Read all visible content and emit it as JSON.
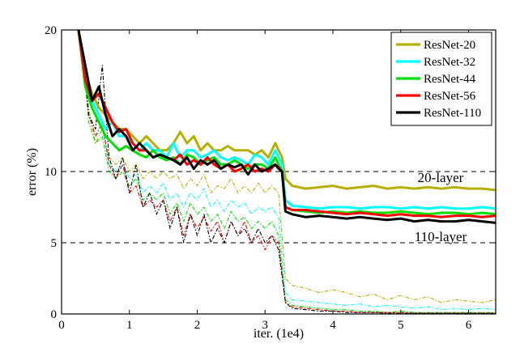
{
  "chart_data": {
    "type": "line",
    "xlabel": "iter. (1e4)",
    "ylabel": "error (%)",
    "xlim": [
      0,
      6.4
    ],
    "ylim": [
      0,
      20
    ],
    "x_ticks": [
      "0",
      "1",
      "2",
      "3",
      "4",
      "5",
      "6"
    ],
    "y_ticks": [
      "0",
      "5",
      "10",
      "20"
    ],
    "grid": "horizontal dashed at 5, 10, 20",
    "legend_position": "top-right",
    "annotations": [
      "20-layer",
      "110-layer"
    ],
    "series": [
      {
        "name": "ResNet-20",
        "color": "#b5b000",
        "style": "solid",
        "x": [
          0.25,
          0.35,
          0.45,
          0.55,
          0.65,
          0.75,
          0.85,
          0.95,
          1.05,
          1.15,
          1.25,
          1.35,
          1.45,
          1.55,
          1.65,
          1.75,
          1.85,
          1.95,
          2.05,
          2.15,
          2.25,
          2.35,
          2.45,
          2.55,
          2.65,
          2.75,
          2.85,
          2.95,
          3.05,
          3.15,
          3.2,
          3.25,
          3.3,
          3.4,
          3.6,
          3.8,
          4.0,
          4.2,
          4.4,
          4.6,
          4.8,
          5.0,
          5.2,
          5.4,
          5.6,
          5.8,
          6.0,
          6.2,
          6.4
        ],
        "values": [
          20,
          17.0,
          15.5,
          14.5,
          14.0,
          13.5,
          13.0,
          13.0,
          12.5,
          12.0,
          12.5,
          12.0,
          11.5,
          11.5,
          12.0,
          12.8,
          12.0,
          12.5,
          11.5,
          12.0,
          11.5,
          11.5,
          11.8,
          11.5,
          11.5,
          11.5,
          11.2,
          11.5,
          11.0,
          12.0,
          11.5,
          11.0,
          9.5,
          9.0,
          8.8,
          8.9,
          9.0,
          8.8,
          8.9,
          9.0,
          8.8,
          8.9,
          8.8,
          8.9,
          8.8,
          8.9,
          8.8,
          8.8,
          8.7
        ]
      },
      {
        "name": "ResNet-32",
        "color": "#00ffff",
        "style": "solid",
        "x": [
          0.25,
          0.35,
          0.45,
          0.55,
          0.65,
          0.75,
          0.85,
          0.95,
          1.05,
          1.15,
          1.25,
          1.35,
          1.45,
          1.55,
          1.65,
          1.75,
          1.85,
          1.95,
          2.05,
          2.15,
          2.25,
          2.35,
          2.45,
          2.55,
          2.65,
          2.75,
          2.85,
          2.95,
          3.05,
          3.15,
          3.2,
          3.25,
          3.3,
          3.4,
          3.6,
          3.8,
          4.0,
          4.2,
          4.4,
          4.6,
          4.8,
          5.0,
          5.2,
          5.4,
          5.6,
          5.8,
          6.0,
          6.2,
          6.4
        ],
        "values": [
          20,
          16.5,
          15.0,
          14.0,
          13.0,
          13.5,
          12.5,
          12.5,
          12.0,
          11.5,
          12.0,
          11.5,
          11.5,
          11.0,
          12.0,
          11.0,
          11.5,
          11.5,
          11.0,
          11.2,
          11.5,
          11.0,
          10.8,
          11.0,
          10.8,
          10.5,
          11.2,
          11.0,
          10.5,
          11.5,
          11.0,
          10.5,
          8.0,
          7.6,
          7.5,
          7.4,
          7.5,
          7.5,
          7.4,
          7.5,
          7.5,
          7.4,
          7.5,
          7.4,
          7.5,
          7.4,
          7.4,
          7.5,
          7.4
        ]
      },
      {
        "name": "ResNet-44",
        "color": "#00e000",
        "style": "solid",
        "x": [
          0.25,
          0.35,
          0.45,
          0.55,
          0.65,
          0.75,
          0.85,
          0.95,
          1.05,
          1.15,
          1.25,
          1.35,
          1.45,
          1.55,
          1.65,
          1.75,
          1.85,
          1.95,
          2.05,
          2.15,
          2.25,
          2.35,
          2.45,
          2.55,
          2.65,
          2.75,
          2.85,
          2.95,
          3.05,
          3.15,
          3.2,
          3.25,
          3.3,
          3.4,
          3.6,
          3.8,
          4.0,
          4.2,
          4.4,
          4.6,
          4.8,
          5.0,
          5.2,
          5.4,
          5.6,
          5.8,
          6.0,
          6.2,
          6.4
        ],
        "values": [
          20,
          16.0,
          14.5,
          13.5,
          12.5,
          12.0,
          11.5,
          11.8,
          11.5,
          11.2,
          11.0,
          11.5,
          11.0,
          10.8,
          11.0,
          10.5,
          11.2,
          11.0,
          10.5,
          10.8,
          11.0,
          10.5,
          10.5,
          10.8,
          10.5,
          10.2,
          10.5,
          10.5,
          10.2,
          11.0,
          10.5,
          10.0,
          7.5,
          7.3,
          7.2,
          7.1,
          7.2,
          7.1,
          7.2,
          7.1,
          7.1,
          7.2,
          7.1,
          7.0,
          7.1,
          7.1,
          7.0,
          7.1,
          7.0
        ]
      },
      {
        "name": "ResNet-56",
        "color": "#ff0000",
        "style": "solid",
        "x": [
          0.25,
          0.35,
          0.45,
          0.55,
          0.65,
          0.75,
          0.85,
          0.95,
          1.05,
          1.15,
          1.25,
          1.35,
          1.45,
          1.55,
          1.65,
          1.75,
          1.85,
          1.95,
          2.05,
          2.15,
          2.25,
          2.35,
          2.45,
          2.55,
          2.65,
          2.75,
          2.85,
          2.95,
          3.05,
          3.15,
          3.2,
          3.25,
          3.3,
          3.4,
          3.6,
          3.8,
          4.0,
          4.2,
          4.4,
          4.6,
          4.8,
          5.0,
          5.2,
          5.4,
          5.6,
          5.8,
          6.0,
          6.2,
          6.4
        ],
        "values": [
          20,
          16.5,
          15.0,
          15.5,
          14.5,
          13.5,
          12.8,
          13.0,
          12.0,
          11.5,
          11.5,
          11.0,
          11.2,
          11.0,
          10.8,
          11.2,
          10.5,
          10.8,
          10.5,
          11.0,
          10.5,
          10.2,
          10.5,
          10.0,
          10.2,
          10.5,
          10.0,
          10.2,
          10.0,
          10.5,
          10.3,
          10.0,
          7.5,
          7.3,
          7.3,
          7.2,
          7.1,
          7.0,
          7.1,
          7.0,
          6.9,
          7.0,
          6.9,
          6.9,
          6.8,
          6.9,
          6.9,
          6.8,
          6.9
        ]
      },
      {
        "name": "ResNet-110",
        "color": "#000000",
        "style": "solid",
        "x": [
          0.25,
          0.35,
          0.45,
          0.55,
          0.65,
          0.75,
          0.85,
          0.95,
          1.05,
          1.15,
          1.25,
          1.35,
          1.45,
          1.55,
          1.65,
          1.75,
          1.85,
          1.95,
          2.05,
          2.15,
          2.25,
          2.35,
          2.45,
          2.55,
          2.65,
          2.75,
          2.85,
          2.95,
          3.05,
          3.15,
          3.2,
          3.25,
          3.3,
          3.4,
          3.6,
          3.8,
          4.0,
          4.2,
          4.4,
          4.6,
          4.8,
          5.0,
          5.2,
          5.4,
          5.6,
          5.8,
          6.0,
          6.2,
          6.4
        ],
        "values": [
          20,
          17.5,
          15.0,
          16.0,
          14.0,
          12.5,
          13.0,
          12.5,
          11.5,
          12.0,
          11.5,
          11.0,
          11.2,
          11.0,
          10.8,
          10.5,
          11.0,
          10.2,
          10.8,
          10.5,
          10.8,
          10.2,
          10.5,
          10.3,
          10.5,
          9.8,
          10.5,
          10.0,
          10.2,
          10.5,
          10.2,
          10.0,
          7.2,
          7.0,
          6.8,
          6.9,
          6.8,
          6.7,
          6.8,
          6.7,
          6.6,
          6.7,
          6.5,
          6.6,
          6.5,
          6.5,
          6.6,
          6.5,
          6.4
        ]
      },
      {
        "color": "#b5b000",
        "style": "dashdot",
        "x": [
          0.3,
          0.4,
          0.5,
          0.6,
          0.7,
          0.8,
          0.9,
          1.0,
          1.1,
          1.2,
          1.3,
          1.4,
          1.5,
          1.6,
          1.7,
          1.8,
          1.9,
          2.0,
          2.1,
          2.2,
          2.3,
          2.4,
          2.5,
          2.6,
          2.7,
          2.8,
          2.9,
          3.0,
          3.1,
          3.2,
          3.3,
          3.4,
          3.6,
          3.8,
          4.0,
          4.2,
          4.4,
          4.6,
          4.8,
          5.0,
          5.2,
          5.4,
          5.6,
          5.8,
          6.0,
          6.2,
          6.4
        ],
        "values": [
          19,
          14.5,
          12.0,
          13.0,
          11.0,
          10.5,
          11.0,
          10.0,
          10.5,
          9.5,
          10.0,
          9.5,
          10.0,
          9.5,
          9.8,
          8.8,
          9.5,
          9.0,
          9.8,
          8.5,
          9.0,
          8.8,
          9.5,
          8.5,
          9.0,
          8.5,
          9.2,
          8.5,
          9.0,
          8.5,
          2.5,
          2.0,
          1.8,
          1.5,
          1.7,
          1.5,
          1.2,
          1.4,
          1.0,
          1.3,
          1.0,
          1.2,
          0.8,
          1.0,
          0.9,
          0.8,
          1.0
        ]
      },
      {
        "color": "#00ffff",
        "style": "dashdot",
        "x": [
          0.3,
          0.4,
          0.5,
          0.6,
          0.7,
          0.8,
          0.9,
          1.0,
          1.1,
          1.2,
          1.3,
          1.4,
          1.5,
          1.6,
          1.7,
          1.8,
          1.9,
          2.0,
          2.1,
          2.2,
          2.3,
          2.4,
          2.5,
          2.6,
          2.7,
          2.8,
          2.9,
          3.0,
          3.1,
          3.2,
          3.3,
          3.4,
          3.6,
          3.8,
          4.0,
          4.2,
          4.4,
          4.6,
          4.8,
          5.0,
          5.2,
          5.4,
          5.6,
          5.8,
          6.0,
          6.2,
          6.4
        ],
        "values": [
          19,
          14.0,
          12.5,
          13.0,
          10.5,
          10.0,
          10.5,
          9.5,
          9.8,
          8.5,
          9.0,
          8.5,
          9.2,
          8.0,
          8.5,
          7.5,
          8.5,
          8.0,
          8.8,
          7.5,
          8.0,
          7.2,
          8.0,
          7.5,
          7.8,
          7.0,
          7.5,
          7.2,
          7.5,
          6.8,
          1.5,
          1.0,
          0.9,
          0.8,
          0.7,
          0.6,
          0.7,
          0.5,
          0.6,
          0.5,
          0.4,
          0.5,
          0.3,
          0.4,
          0.3,
          0.4,
          0.3
        ]
      },
      {
        "color": "#00e000",
        "style": "dashdot",
        "x": [
          0.3,
          0.4,
          0.5,
          0.6,
          0.7,
          0.8,
          0.9,
          1.0,
          1.1,
          1.2,
          1.3,
          1.4,
          1.5,
          1.6,
          1.7,
          1.8,
          1.9,
          2.0,
          2.1,
          2.2,
          2.3,
          2.4,
          2.5,
          2.6,
          2.7,
          2.8,
          2.9,
          3.0,
          3.1,
          3.2,
          3.3,
          3.4,
          3.6,
          3.8,
          4.0,
          4.2,
          4.4,
          4.6,
          4.8,
          5.0,
          5.2,
          5.4,
          5.6,
          5.8,
          6.0,
          6.2,
          6.4
        ],
        "values": [
          19,
          13.5,
          12.0,
          12.5,
          10.0,
          9.5,
          10.0,
          9.0,
          9.5,
          8.0,
          8.5,
          8.0,
          8.5,
          7.0,
          7.8,
          6.5,
          7.8,
          7.0,
          7.5,
          6.5,
          7.0,
          6.0,
          7.2,
          6.5,
          6.8,
          6.0,
          6.5,
          6.0,
          6.5,
          5.5,
          1.0,
          0.6,
          0.5,
          0.4,
          0.3,
          0.3,
          0.2,
          0.2,
          0.1,
          0.2,
          0.1,
          0.1,
          0.1,
          0.1,
          0.1,
          0.1,
          0.1
        ]
      },
      {
        "color": "#ff0000",
        "style": "dashdot",
        "x": [
          0.3,
          0.4,
          0.5,
          0.6,
          0.7,
          0.8,
          0.9,
          1.0,
          1.1,
          1.2,
          1.3,
          1.4,
          1.5,
          1.6,
          1.7,
          1.8,
          1.9,
          2.0,
          2.1,
          2.2,
          2.3,
          2.4,
          2.5,
          2.6,
          2.7,
          2.8,
          2.9,
          3.0,
          3.1,
          3.2,
          3.3,
          3.4,
          3.6,
          3.8,
          4.0,
          4.2,
          4.4,
          4.6,
          4.8,
          5.0,
          5.2,
          5.4,
          5.6,
          5.8,
          6.0,
          6.2,
          6.4
        ],
        "values": [
          19,
          14.0,
          12.5,
          13.5,
          10.5,
          9.5,
          10.5,
          8.5,
          9.0,
          7.5,
          8.0,
          7.5,
          8.0,
          6.5,
          7.5,
          5.5,
          7.0,
          6.0,
          6.8,
          5.8,
          6.5,
          5.0,
          6.5,
          5.5,
          6.5,
          5.0,
          5.5,
          4.5,
          5.5,
          5.0,
          0.8,
          0.5,
          0.4,
          0.3,
          0.2,
          0.2,
          0.1,
          0.1,
          0.1,
          0.1,
          0.05,
          0.05,
          0.05,
          0.05,
          0.05,
          0.05,
          0.05
        ]
      },
      {
        "color": "#000000",
        "style": "dashdot",
        "x": [
          0.3,
          0.4,
          0.5,
          0.6,
          0.7,
          0.8,
          0.9,
          1.0,
          1.1,
          1.2,
          1.3,
          1.4,
          1.5,
          1.6,
          1.7,
          1.8,
          1.9,
          2.0,
          2.1,
          2.2,
          2.3,
          2.4,
          2.5,
          2.6,
          2.7,
          2.8,
          2.9,
          3.0,
          3.1,
          3.2,
          3.3,
          3.4,
          3.6,
          3.8,
          4.0,
          4.2,
          4.4,
          4.6,
          4.8,
          5.0,
          5.2,
          5.4,
          5.6,
          5.8,
          6.0,
          6.2,
          6.4
        ],
        "values": [
          19,
          14.0,
          13.0,
          17.5,
          11.0,
          9.5,
          11.0,
          8.5,
          10.5,
          7.5,
          8.5,
          7.0,
          8.0,
          6.0,
          7.5,
          5.0,
          7.0,
          5.5,
          7.0,
          5.0,
          6.0,
          5.0,
          6.5,
          5.5,
          6.0,
          5.0,
          6.0,
          5.0,
          5.5,
          4.5,
          0.8,
          0.4,
          0.3,
          0.2,
          0.2,
          0.1,
          0.1,
          0.1,
          0.05,
          0.05,
          0.05,
          0.05,
          0.05,
          0.05,
          0.05,
          0.05,
          0.05
        ]
      }
    ]
  }
}
